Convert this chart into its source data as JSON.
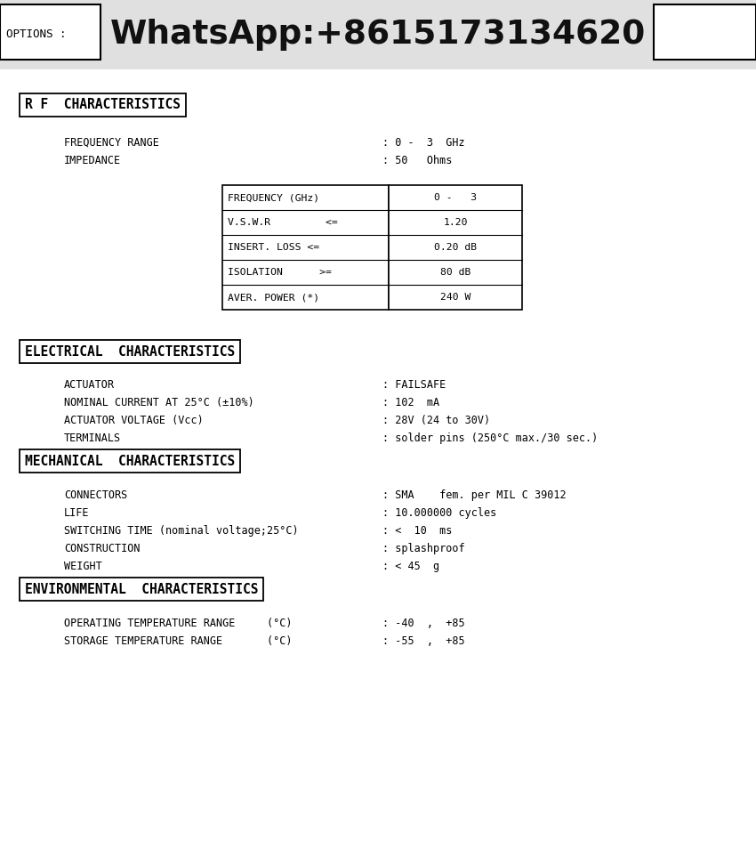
{
  "white_bg": "#ffffff",
  "header_bg": "#e0e0e0",
  "header_text": "WhatsApp:+8615173134620",
  "options_text": "OPTIONS :",
  "rf_title": "R F  CHARACTERISTICS",
  "elec_title": "ELECTRICAL  CHARACTERISTICS",
  "mech_title": "MECHANICAL  CHARACTERISTICS",
  "env_title": "ENVIRONMENTAL  CHARACTERISTICS",
  "freq_range_label": "FREQUENCY RANGE",
  "freq_range_val": ": 0 -  3  GHz",
  "impedance_label": "IMPEDANCE",
  "impedance_val": ": 50   Ohms",
  "table_rows_left": [
    "FREQUENCY (GHz)",
    "V.S.W.R         <=",
    "INSERT. LOSS <=",
    "ISOLATION      >=",
    "AVER. POWER (*)"
  ],
  "table_rows_right": [
    "0 -   3",
    "1.20",
    "0.20 dB",
    "80 dB",
    "240 W"
  ],
  "elec_labels": [
    "ACTUATOR",
    "NOMINAL CURRENT AT 25°C (±10%)",
    "ACTUATOR VOLTAGE (Vcc)",
    "TERMINALS"
  ],
  "elec_vals": [
    ": FAILSAFE",
    ": 102  mA",
    ": 28V (24 to 30V)",
    ": solder pins (250°C max./30 sec.)"
  ],
  "mech_labels": [
    "CONNECTORS",
    "LIFE",
    "SWITCHING TIME (nominal voltage;25°C)",
    "CONSTRUCTION",
    "WEIGHT"
  ],
  "mech_vals": [
    ": SMA    fem. per MIL C 39012",
    ": 10.000000 cycles",
    ": <  10  ms",
    ": splashproof",
    ": < 45  g"
  ],
  "env_labels": [
    "OPERATING TEMPERATURE RANGE     (°C)",
    "STORAGE TEMPERATURE RANGE       (°C)"
  ],
  "env_vals": [
    ": -40  ,  +85",
    ": -55  ,  +85"
  ]
}
